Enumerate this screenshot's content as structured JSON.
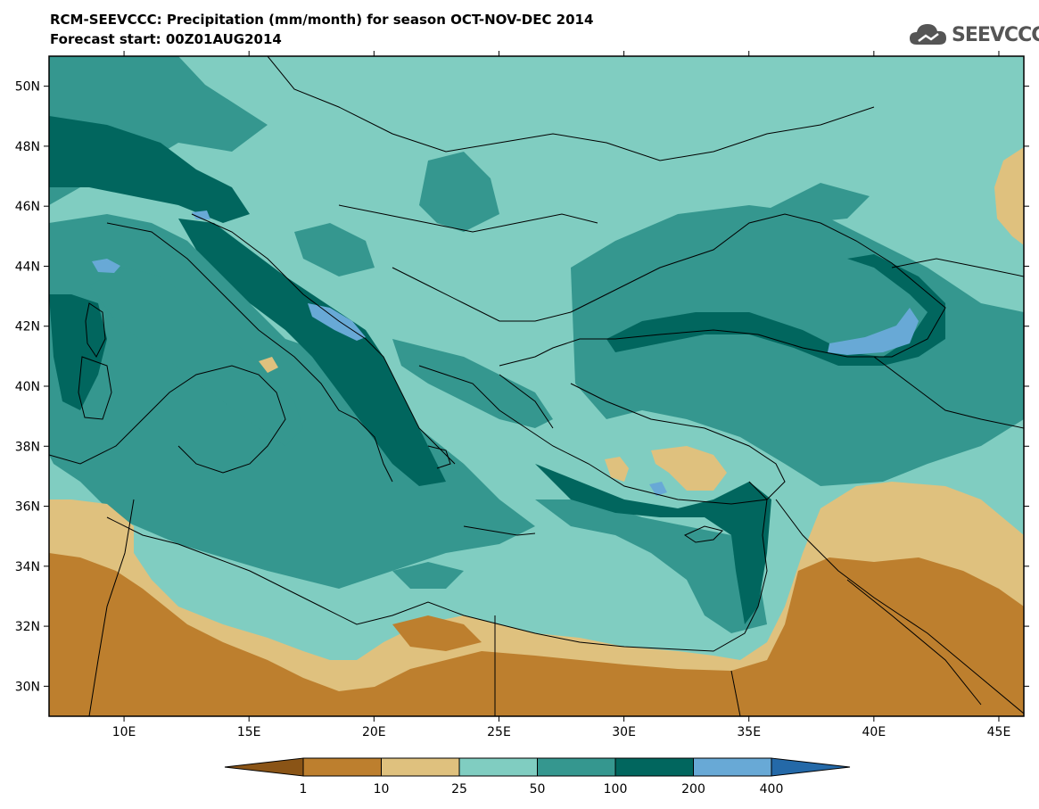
{
  "title": {
    "line1": "RCM-SEEVCCC: Precipitation (mm/month) for season OCT-NOV-DEC 2014",
    "line2": "Forecast start: 00Z01AUG2014"
  },
  "logo": {
    "text": "SEEVCCC",
    "icon": "cloud-icon"
  },
  "axes": {
    "lon_range": [
      7,
      46
    ],
    "lat_range": [
      29,
      51
    ],
    "x_ticks": [
      "10E",
      "15E",
      "20E",
      "25E",
      "30E",
      "35E",
      "40E",
      "45E"
    ],
    "y_ticks": [
      "50N",
      "48N",
      "46N",
      "44N",
      "42N",
      "40N",
      "38N",
      "36N",
      "34N",
      "32N",
      "30N"
    ]
  },
  "colorbar": {
    "levels": [
      "1",
      "10",
      "25",
      "50",
      "100",
      "200",
      "400"
    ],
    "colors": {
      "lt1": "#8a5416",
      "1-10": "#bd7f2e",
      "10-25": "#dfc17e",
      "25-50": "#80cdc1",
      "50-100": "#35978f",
      "100-200": "#01665e",
      "200-400": "#68a9d6",
      "gt400": "#2469a8"
    }
  }
}
